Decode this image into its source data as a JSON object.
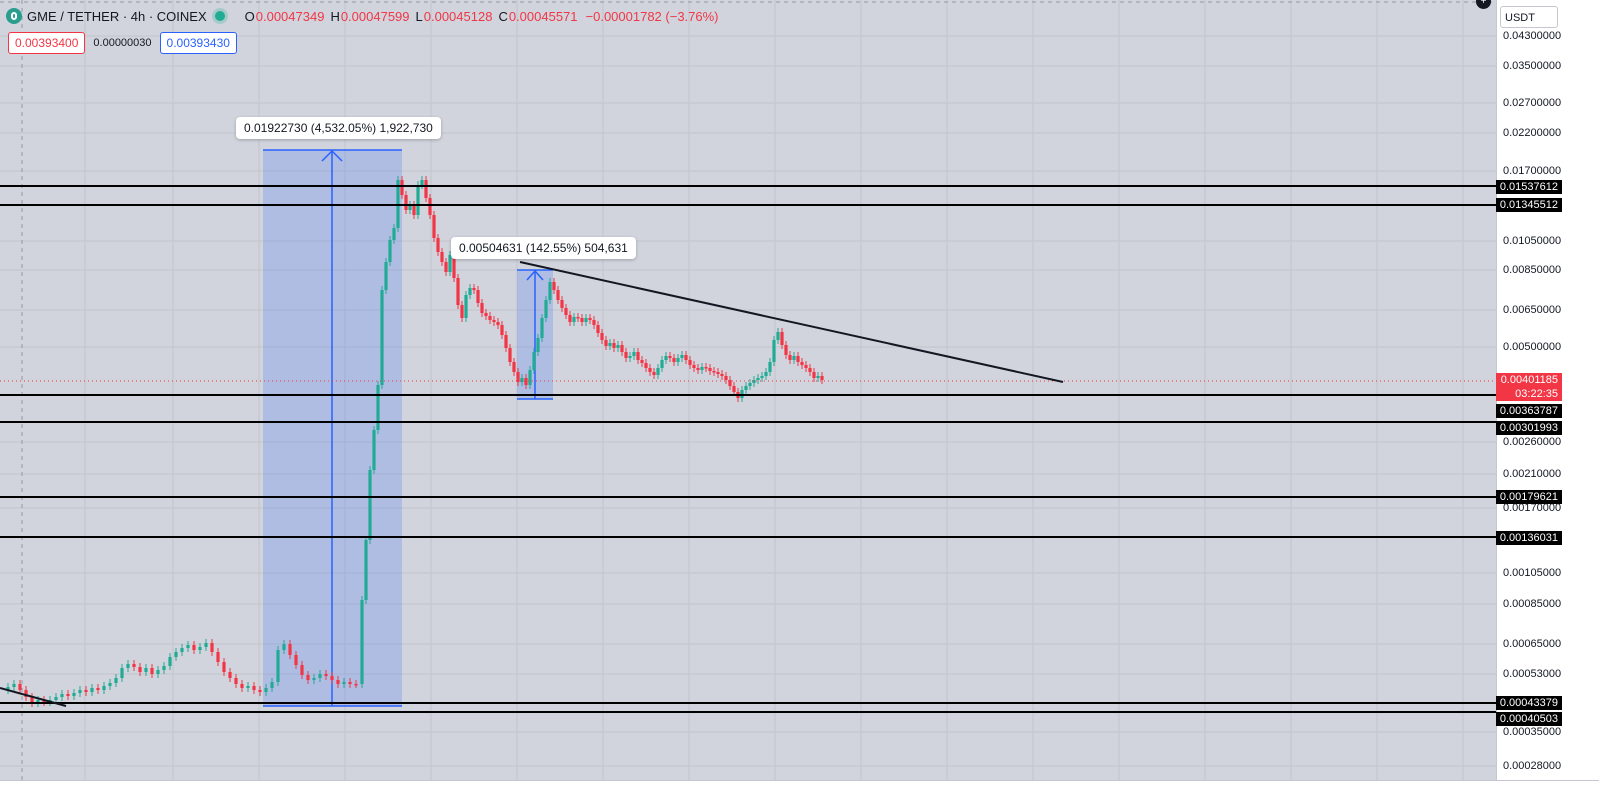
{
  "header": {
    "symbol": "GME / TETHER · 4h · COINEX",
    "ohlc": [
      {
        "key": "O",
        "value": "0.00047349"
      },
      {
        "key": "H",
        "value": "0.00047599"
      },
      {
        "key": "L",
        "value": "0.00045128"
      },
      {
        "key": "C",
        "value": "0.00045571"
      }
    ],
    "change": "−0.00001782 (−3.76%)"
  },
  "quote": {
    "sell": "0.00393400",
    "spread": "0.00000030",
    "buy": "0.00393430"
  },
  "currency_selector": "USDT",
  "price_axis": {
    "ticks": [
      "0.04300000",
      "0.03500000",
      "0.02700000",
      "0.02200000",
      "0.01700000",
      "0.01050000",
      "0.00850000",
      "0.00650000",
      "0.00500000",
      "0.00260000",
      "0.00210000",
      "0.00170000",
      "0.00105000",
      "0.00085000",
      "0.00065000",
      "0.00053000",
      "0.00035000",
      "0.00028000"
    ],
    "current_price": "0.00401185",
    "countdown": "03:22:35",
    "horizontal_levels": [
      "0.01537612",
      "0.01345512",
      "0.00363787",
      "0.00301993",
      "0.00179621",
      "0.00136031",
      "0.00043379",
      "0.00040503"
    ]
  },
  "measurements": [
    {
      "text": "0.01922730 (4,532.05%) 1,922,730"
    },
    {
      "text": "0.00504631 (142.55%) 504,631"
    }
  ],
  "colors": {
    "up": "#22ab94",
    "down": "#f23645",
    "measure": "#2962ff",
    "chart_bg": "#d1d4dc"
  }
}
